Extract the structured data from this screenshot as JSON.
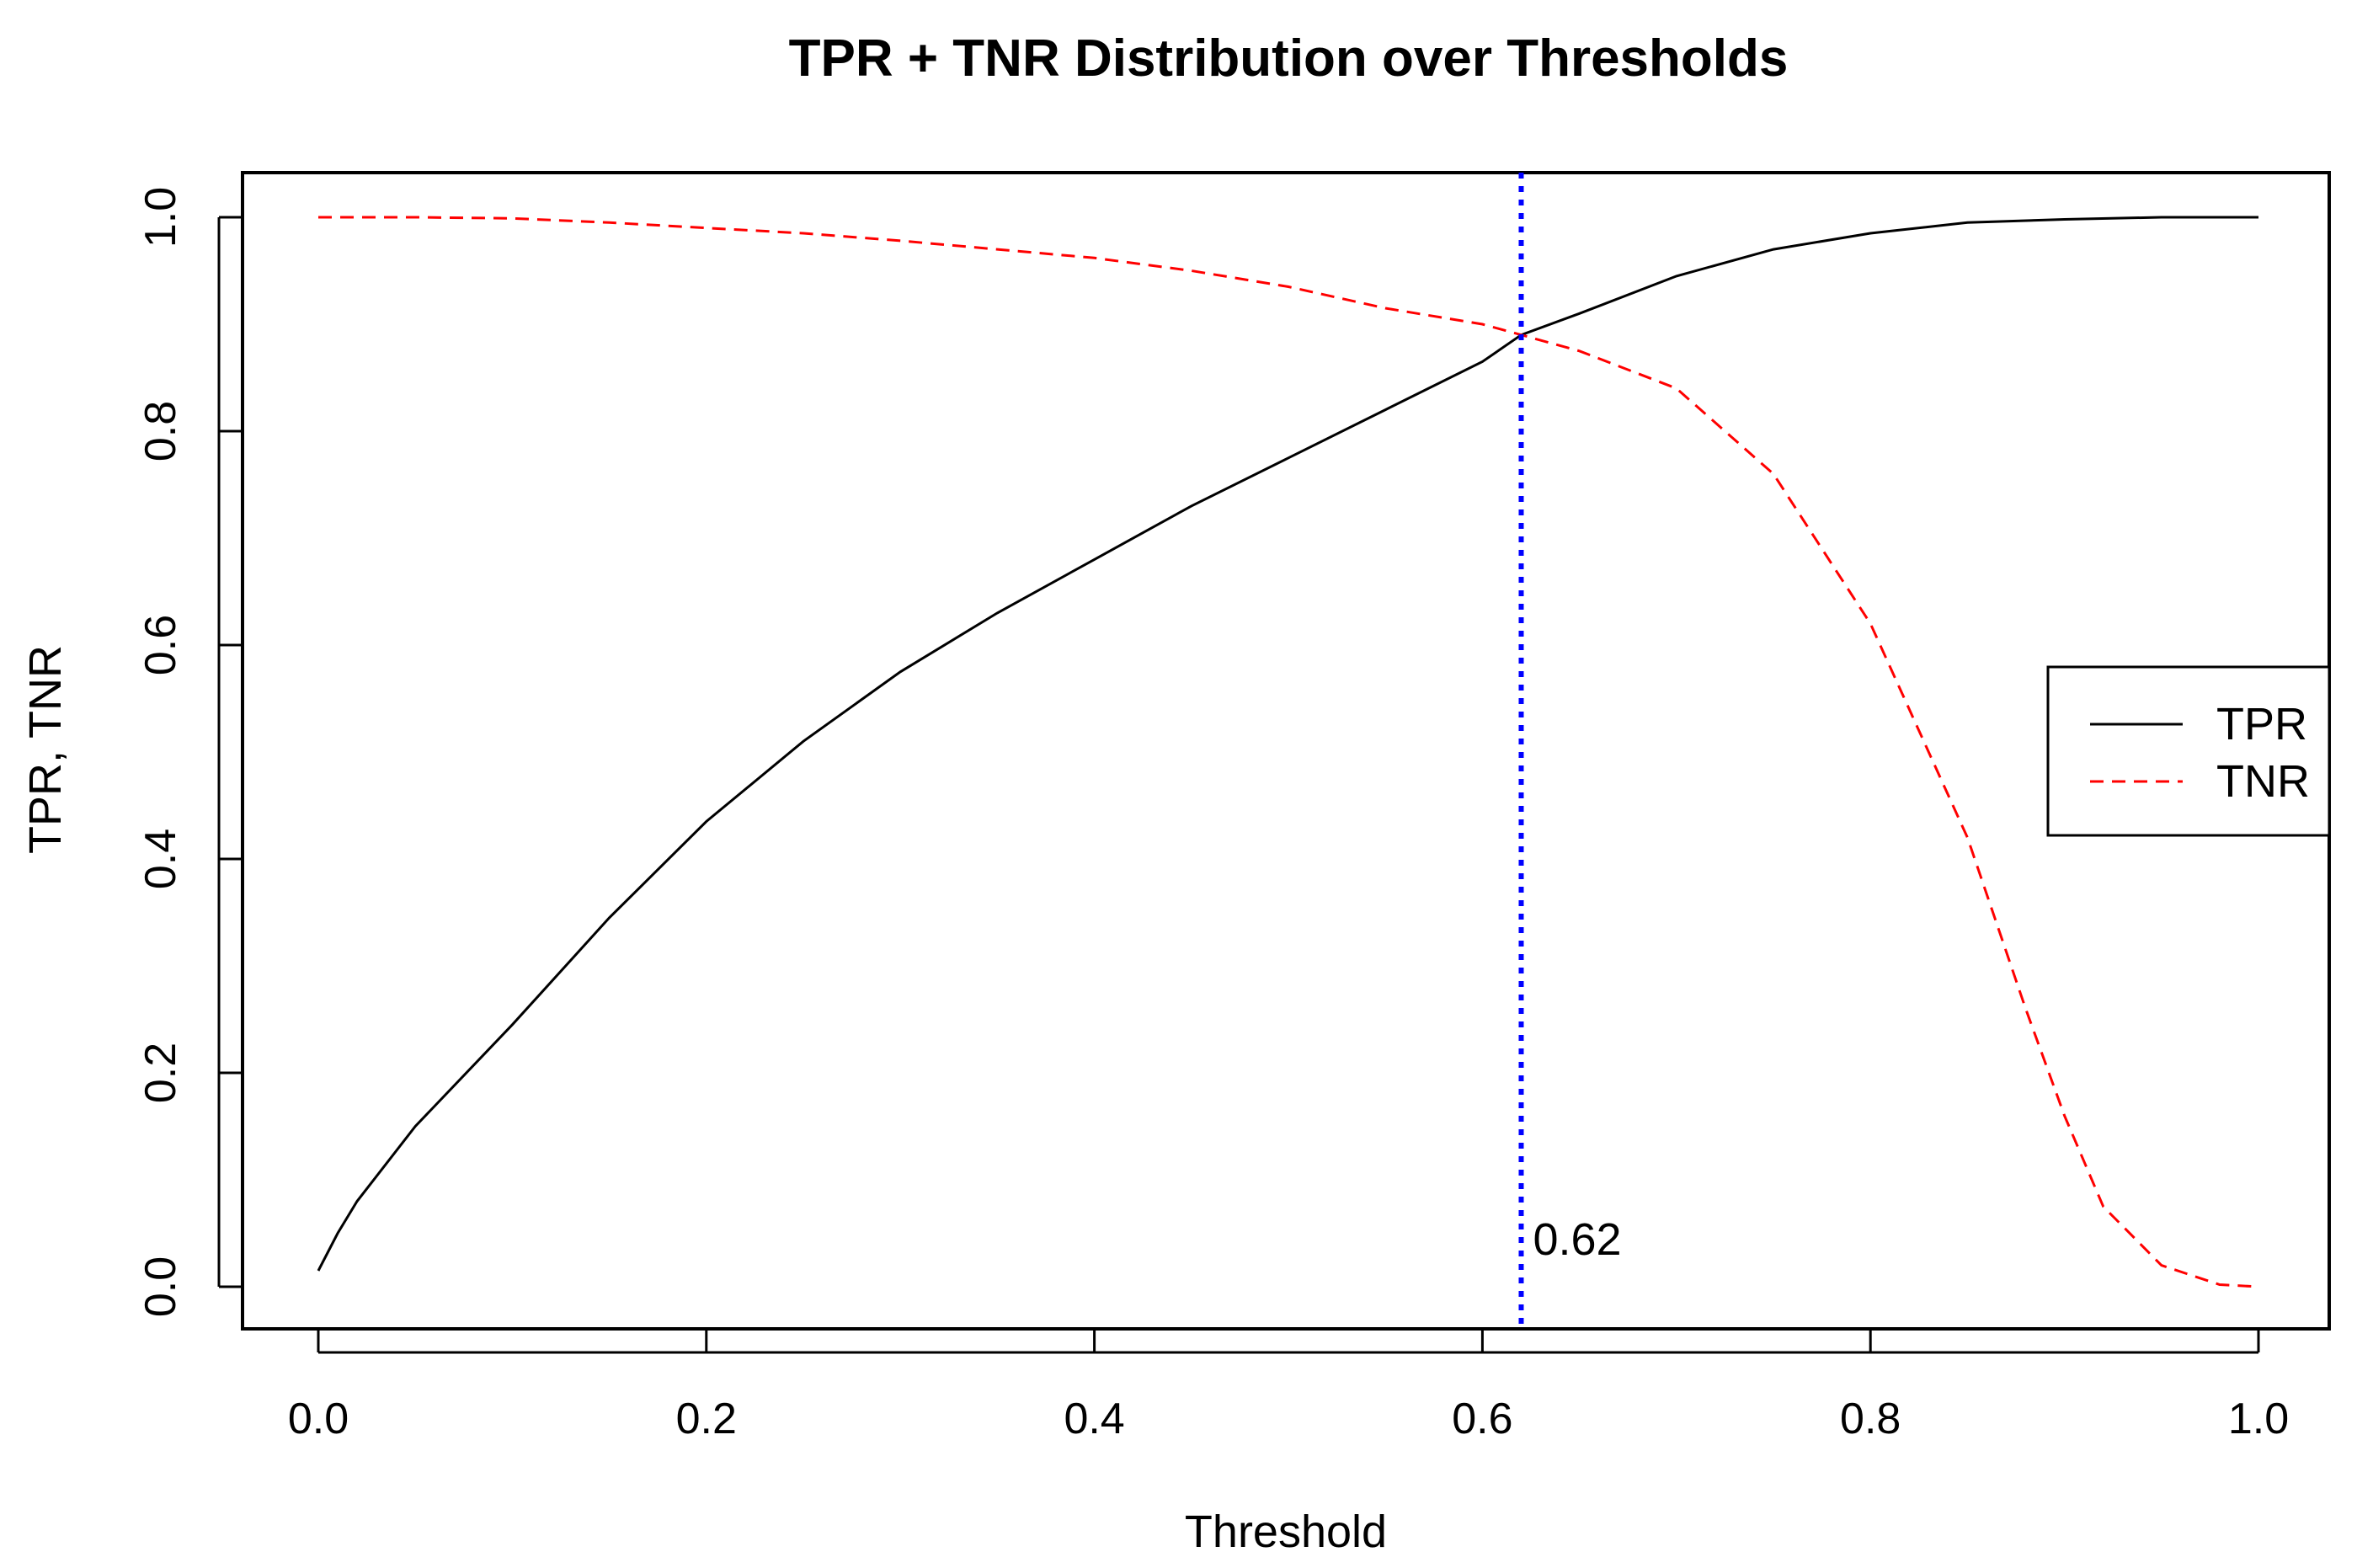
{
  "chart_data": {
    "type": "line",
    "title": "TPR + TNR Distribution over Thresholds",
    "xlabel": "Threshold",
    "ylabel": "TPR, TNR",
    "xlim": [
      0.0,
      1.0
    ],
    "ylim": [
      0.0,
      1.0
    ],
    "x_ticks": [
      "0.0",
      "0.2",
      "0.4",
      "0.6",
      "0.8",
      "1.0"
    ],
    "y_ticks": [
      "0.0",
      "0.2",
      "0.4",
      "0.6",
      "0.8",
      "1.0"
    ],
    "grid": false,
    "legend_position": "right",
    "legend": [
      "TPR",
      "TNR"
    ],
    "series": [
      {
        "name": "TPR",
        "color": "#000000",
        "style": "solid",
        "x": [
          0.0,
          0.01,
          0.02,
          0.05,
          0.1,
          0.15,
          0.2,
          0.25,
          0.3,
          0.35,
          0.4,
          0.45,
          0.5,
          0.55,
          0.6,
          0.62,
          0.65,
          0.7,
          0.75,
          0.8,
          0.85,
          0.9,
          0.95,
          1.0
        ],
        "y": [
          0.015,
          0.05,
          0.08,
          0.15,
          0.245,
          0.345,
          0.435,
          0.51,
          0.575,
          0.63,
          0.68,
          0.73,
          0.775,
          0.82,
          0.865,
          0.89,
          0.91,
          0.945,
          0.97,
          0.985,
          0.995,
          0.998,
          1.0,
          1.0
        ]
      },
      {
        "name": "TNR",
        "color": "#ff0000",
        "style": "dashed",
        "x": [
          0.0,
          0.05,
          0.1,
          0.15,
          0.2,
          0.25,
          0.3,
          0.35,
          0.4,
          0.45,
          0.5,
          0.55,
          0.6,
          0.62,
          0.65,
          0.7,
          0.75,
          0.8,
          0.85,
          0.88,
          0.9,
          0.92,
          0.95,
          0.98,
          1.0
        ],
        "y": [
          1.0,
          1.0,
          0.999,
          0.995,
          0.99,
          0.985,
          0.978,
          0.97,
          0.962,
          0.95,
          0.935,
          0.915,
          0.9,
          0.89,
          0.875,
          0.84,
          0.76,
          0.62,
          0.42,
          0.26,
          0.16,
          0.075,
          0.02,
          0.002,
          0.0
        ]
      }
    ],
    "vline": {
      "x": 0.62,
      "color": "#0000ff",
      "style": "dotted",
      "label": "0.62"
    }
  }
}
